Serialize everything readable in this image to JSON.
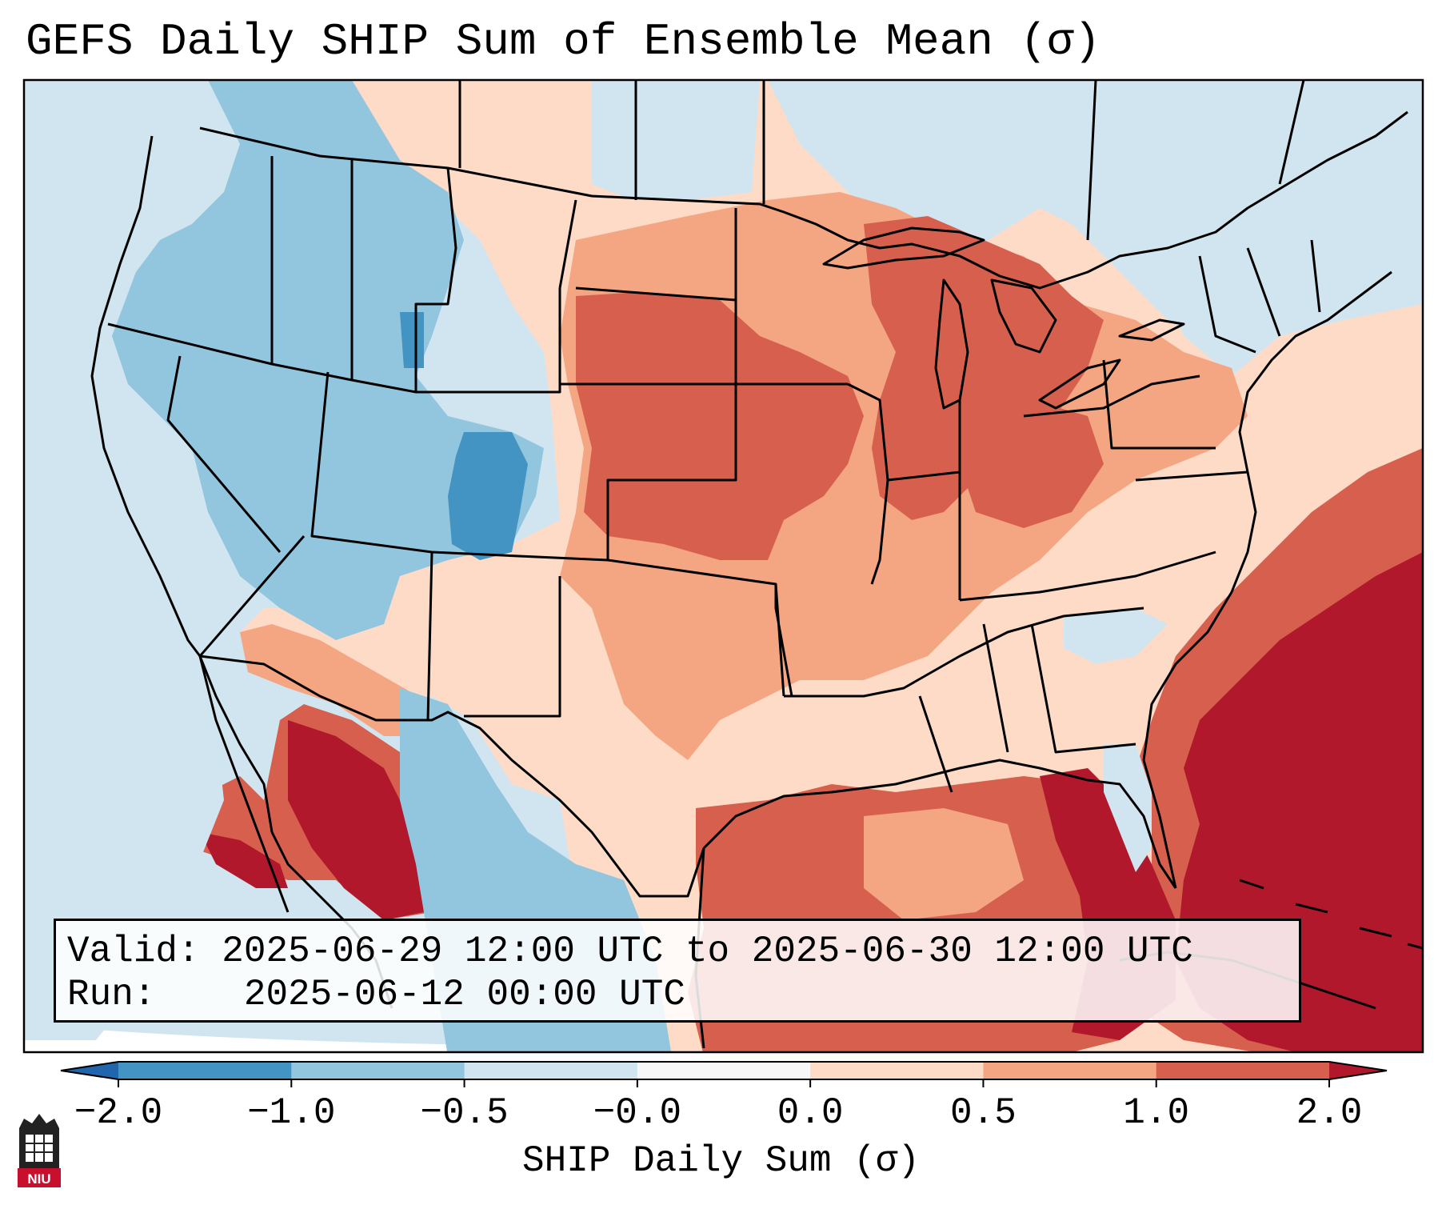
{
  "title": "GEFS Daily SHIP Sum of Ensemble Mean (σ)",
  "info": {
    "valid_label": "Valid:",
    "valid_value": "2025-06-29 12:00 UTC to 2025-06-30 12:00 UTC",
    "run_label": "Run:",
    "run_value": "2025-06-12 00:00 UTC"
  },
  "colorbar": {
    "label": "SHIP Daily Sum (σ)",
    "ticks": [
      "−2.0",
      "−1.0",
      "−0.5",
      "−0.0",
      "0.0",
      "0.5",
      "1.0",
      "2.0"
    ],
    "bins": [
      {
        "range": "-2.0 to -1.0",
        "color": "#4393c3"
      },
      {
        "range": "-1.0 to -0.5",
        "color": "#92c5de"
      },
      {
        "range": "-0.5 to -0.0",
        "color": "#d1e5f0"
      },
      {
        "range": "-0.0 to 0.0",
        "color": "#f7f7f7"
      },
      {
        "range": "0.0 to 0.5",
        "color": "#fddbc7"
      },
      {
        "range": "0.5 to 1.0",
        "color": "#f4a582"
      },
      {
        "range": "1.0 to 2.0",
        "color": "#d6604d"
      }
    ],
    "under_color": "#2166ac",
    "over_color": "#b2182b"
  },
  "logo": {
    "text": "NIU",
    "name": "niu-logo"
  }
}
